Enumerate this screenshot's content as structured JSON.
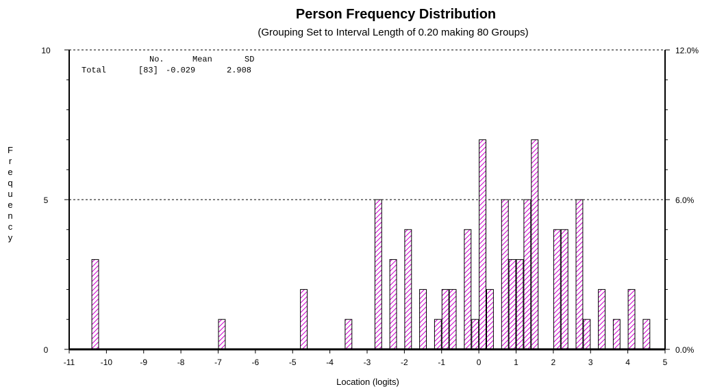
{
  "chart_data": {
    "type": "bar",
    "title": "Person Frequency Distribution",
    "subtitle": "(Grouping Set to Interval Length of 0.20  making 80  Groups)",
    "xlabel": "Location (logits)",
    "ylabel": "Frequency",
    "xlim": [
      -11,
      5
    ],
    "ylim": [
      0,
      10
    ],
    "y2lim": [
      0,
      12
    ],
    "x_ticks": [
      -11,
      -10,
      -9,
      -8,
      -7,
      -6,
      -5,
      -4,
      -3,
      -2,
      -1,
      0,
      1,
      2,
      3,
      4,
      5
    ],
    "y_ticks": [
      0,
      5,
      10
    ],
    "y2_ticks": [
      "0.0%",
      "6.0%",
      "12.0%"
    ],
    "bin_width": 0.2,
    "bars": [
      {
        "x": -10.3,
        "value": 3
      },
      {
        "x": -6.9,
        "value": 1
      },
      {
        "x": -4.7,
        "value": 2
      },
      {
        "x": -3.5,
        "value": 1
      },
      {
        "x": -2.7,
        "value": 5
      },
      {
        "x": -2.3,
        "value": 3
      },
      {
        "x": -1.9,
        "value": 4
      },
      {
        "x": -1.5,
        "value": 2
      },
      {
        "x": -1.1,
        "value": 1
      },
      {
        "x": -0.9,
        "value": 2
      },
      {
        "x": -0.7,
        "value": 2
      },
      {
        "x": -0.3,
        "value": 4
      },
      {
        "x": -0.1,
        "value": 1
      },
      {
        "x": 0.1,
        "value": 7
      },
      {
        "x": 0.3,
        "value": 2
      },
      {
        "x": 0.7,
        "value": 5
      },
      {
        "x": 0.9,
        "value": 3
      },
      {
        "x": 1.1,
        "value": 3
      },
      {
        "x": 1.3,
        "value": 5
      },
      {
        "x": 1.5,
        "value": 7
      },
      {
        "x": 2.1,
        "value": 4
      },
      {
        "x": 2.3,
        "value": 4
      },
      {
        "x": 2.7,
        "value": 5
      },
      {
        "x": 2.9,
        "value": 1
      },
      {
        "x": 3.3,
        "value": 2
      },
      {
        "x": 3.7,
        "value": 1
      },
      {
        "x": 4.1,
        "value": 2
      },
      {
        "x": 4.5,
        "value": 1
      }
    ],
    "gridlines_y": [
      5,
      10
    ],
    "grid": "dashed horizontal",
    "stats_table": {
      "headers": [
        "No.",
        "Mean",
        "SD"
      ],
      "row_label": "Total",
      "values": [
        "[83]",
        "-0.029",
        "2.908"
      ]
    },
    "colors": {
      "hatch": "#cc00cc",
      "bar_outline": "#000000",
      "axis": "#000000",
      "grid": "#000000"
    }
  }
}
